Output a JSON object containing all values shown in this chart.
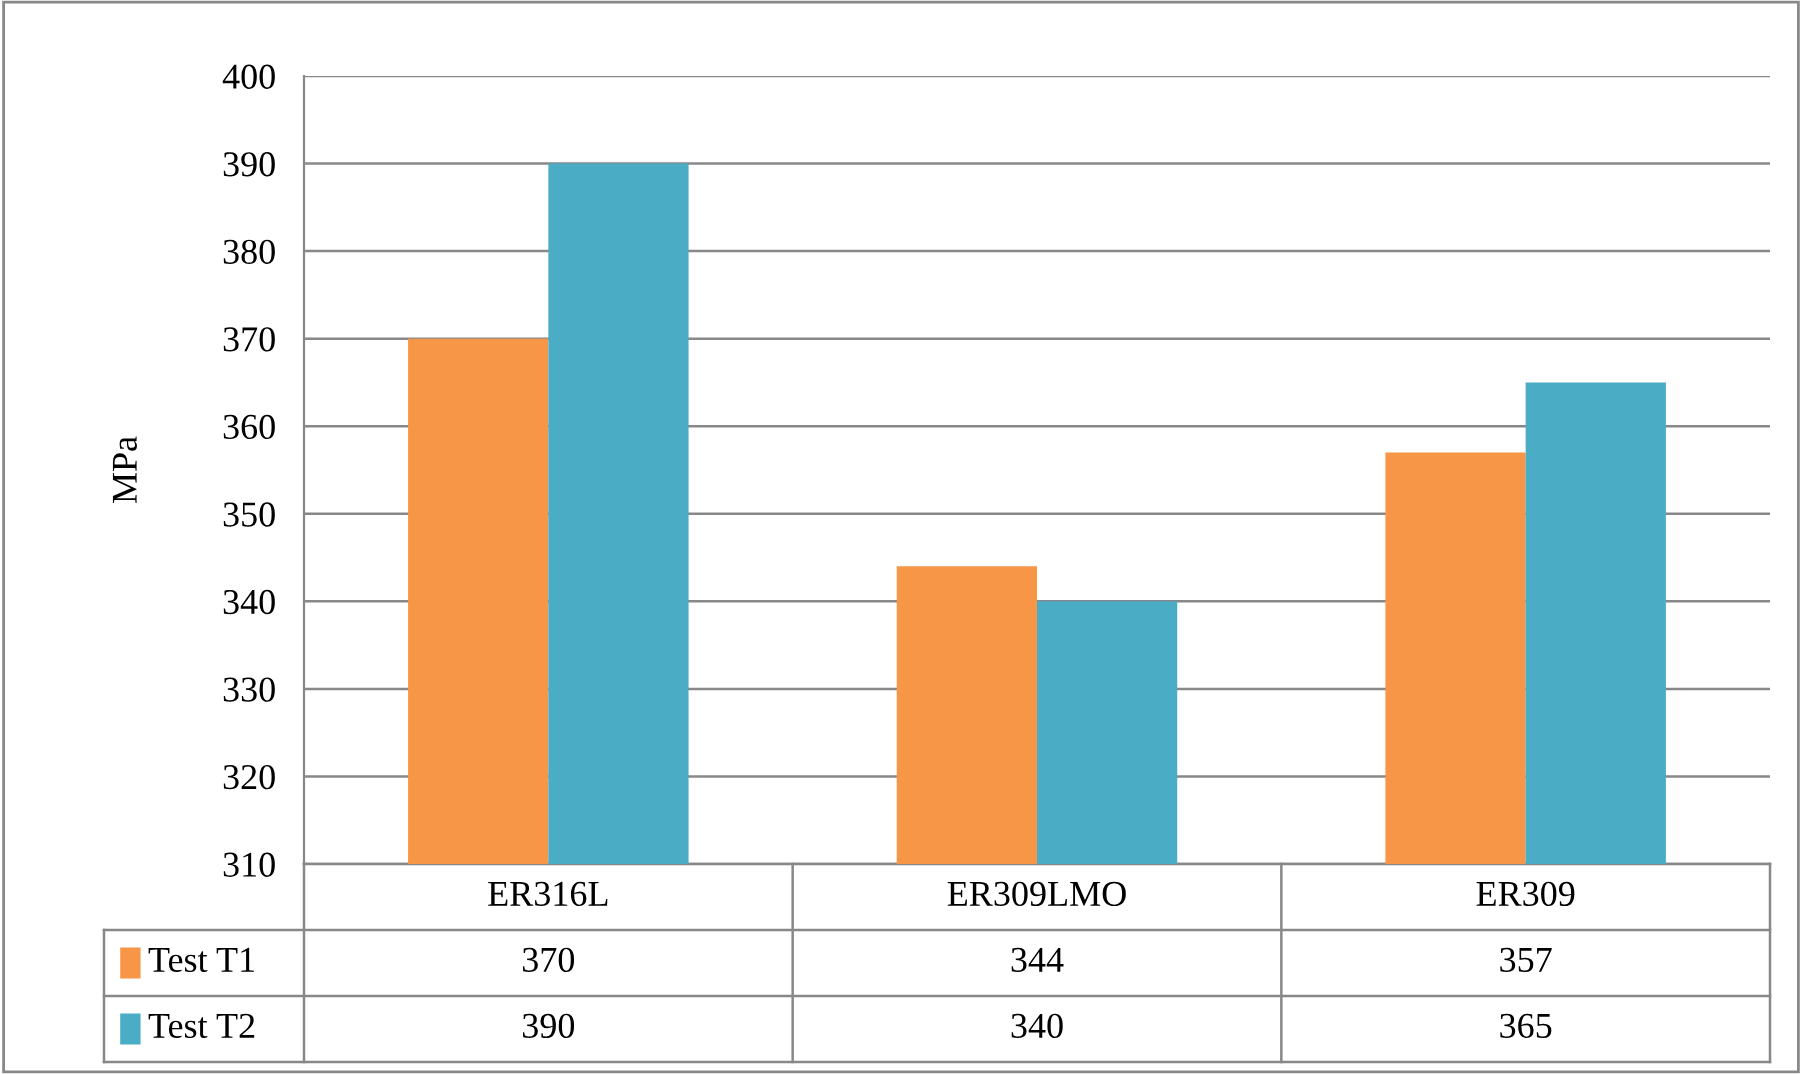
{
  "chart_data": {
    "type": "bar",
    "ylabel": "MPa",
    "categories": [
      "ER316L",
      "ER309LMO",
      "ER309"
    ],
    "series": [
      {
        "name": "Test T1",
        "color": "#f79646",
        "values": [
          370,
          344,
          357
        ]
      },
      {
        "name": "Test T2",
        "color": "#4bacc6",
        "values": [
          390,
          340,
          365
        ]
      }
    ],
    "ylim": [
      310,
      400
    ],
    "yticks": [
      310,
      320,
      330,
      340,
      350,
      360,
      370,
      380,
      390,
      400
    ],
    "grid": "y",
    "data_labels": true,
    "legend": "bottom left"
  }
}
